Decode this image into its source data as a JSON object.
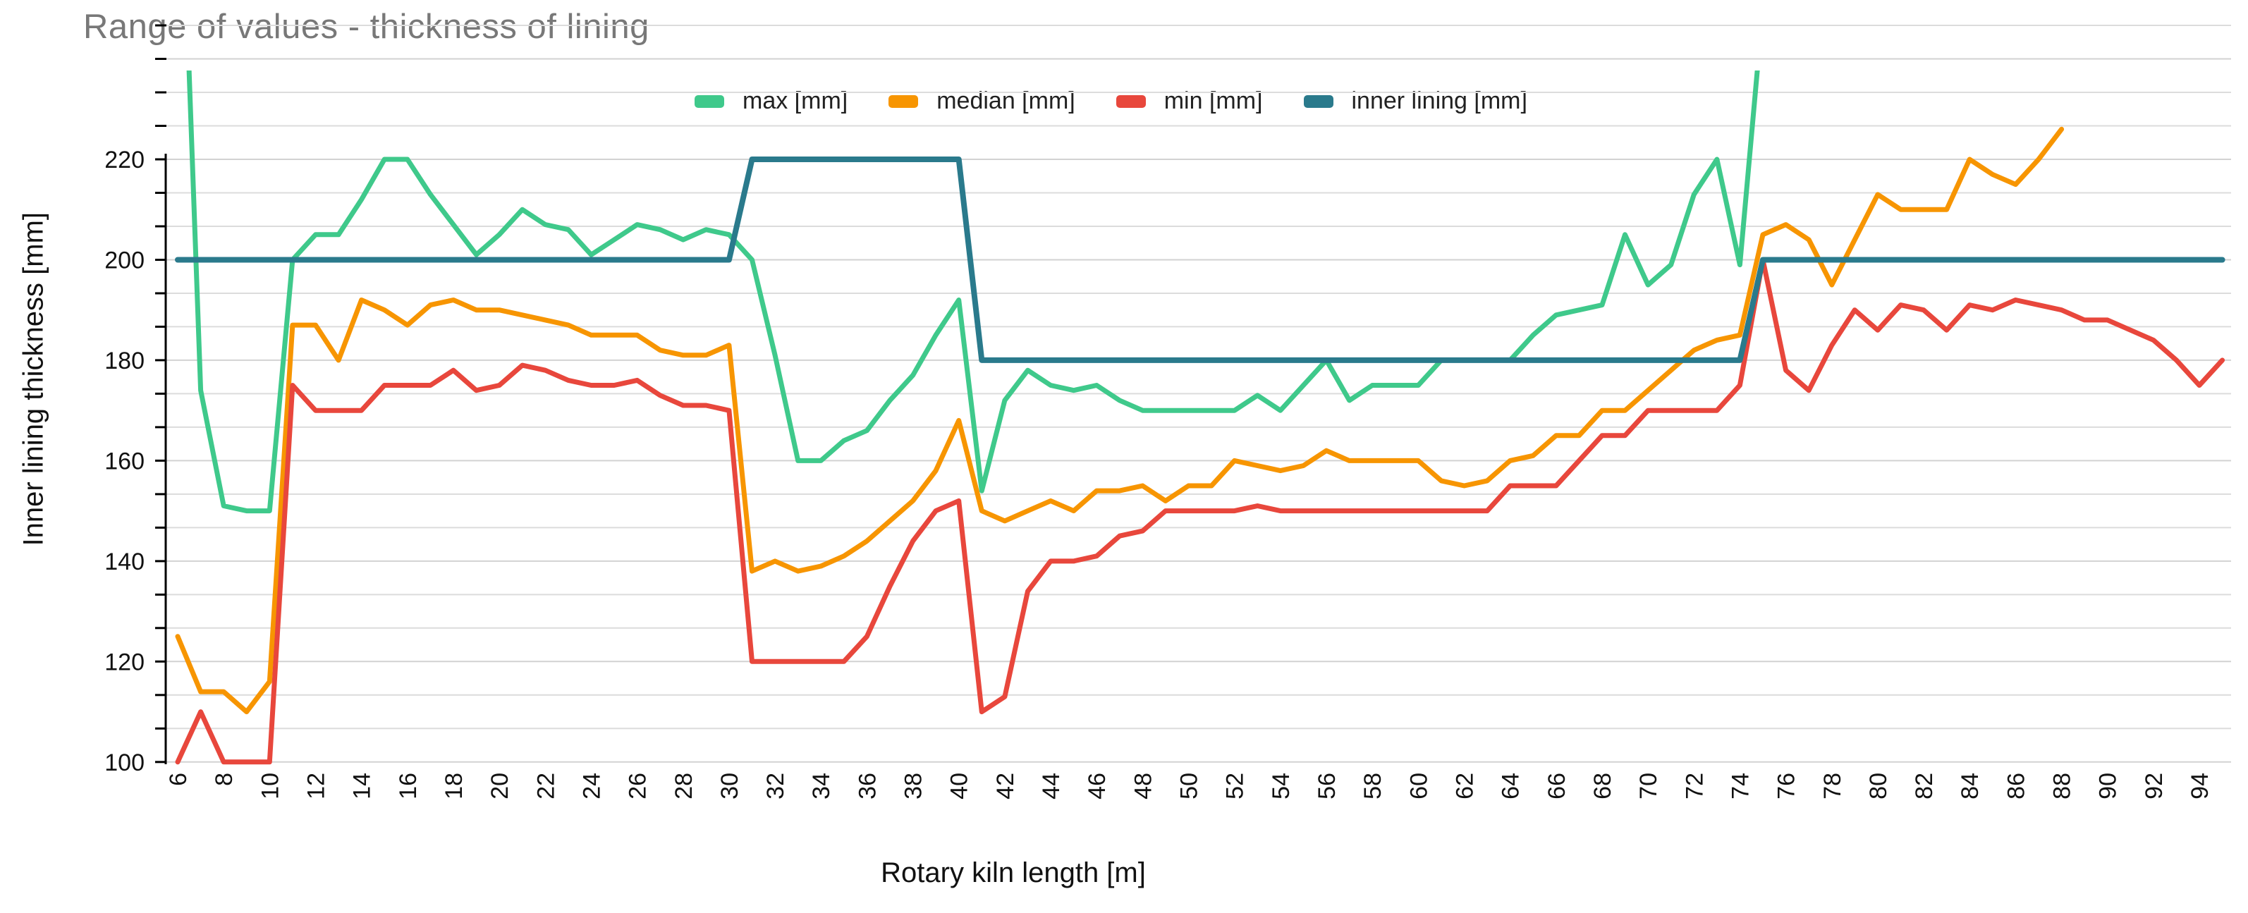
{
  "chart_title": "Range of values - thickness of lining",
  "axes": {
    "x_title": "Rotary kiln length [m]",
    "y_title": "Inner lining thickness [mm]"
  },
  "chart_data": {
    "type": "line",
    "title": "Range of values - thickness of lining",
    "xlabel": "Rotary kiln length [m]",
    "ylabel": "Inner lining thickness [mm]",
    "ylim": [
      100,
      220
    ],
    "xlim": [
      6,
      95
    ],
    "y_ticks": [
      100,
      120,
      140,
      160,
      180,
      200,
      220
    ],
    "y_minor_gridline_step": 6.667,
    "x_ticks": [
      6,
      8,
      10,
      12,
      14,
      16,
      18,
      20,
      22,
      24,
      26,
      28,
      30,
      32,
      34,
      36,
      38,
      40,
      42,
      44,
      46,
      48,
      50,
      52,
      54,
      56,
      58,
      60,
      62,
      64,
      66,
      68,
      70,
      72,
      74,
      76,
      78,
      80,
      82,
      84,
      86,
      88,
      90,
      92,
      94
    ],
    "grid": true,
    "legend_position": "top",
    "note_clipping": "series values above 220 run off the top of the plot",
    "x": [
      6,
      7,
      8,
      9,
      10,
      11,
      12,
      13,
      14,
      15,
      16,
      17,
      18,
      19,
      20,
      21,
      22,
      23,
      24,
      25,
      26,
      27,
      28,
      29,
      30,
      31,
      32,
      33,
      34,
      35,
      36,
      37,
      38,
      39,
      40,
      41,
      42,
      43,
      44,
      45,
      46,
      47,
      48,
      49,
      50,
      51,
      52,
      53,
      54,
      55,
      56,
      57,
      58,
      59,
      60,
      61,
      62,
      63,
      64,
      65,
      66,
      67,
      68,
      69,
      70,
      71,
      72,
      73,
      74,
      75,
      76,
      77,
      78,
      79,
      80,
      81,
      82,
      83,
      84,
      85,
      86,
      87,
      88,
      89,
      90,
      91,
      92,
      93,
      94,
      95
    ],
    "series": [
      {
        "name": "max [mm]",
        "color": "#3fc98b",
        "values": [
          300,
          174,
          151,
          150,
          150,
          200,
          205,
          205,
          212,
          220,
          220,
          213,
          207,
          201,
          205,
          210,
          207,
          206,
          201,
          204,
          207,
          206,
          204,
          206,
          205,
          200,
          181,
          160,
          160,
          164,
          166,
          172,
          177,
          185,
          192,
          154,
          172,
          178,
          175,
          174,
          175,
          172,
          170,
          170,
          170,
          170,
          170,
          173,
          170,
          175,
          180,
          172,
          175,
          175,
          175,
          180,
          180,
          180,
          180,
          185,
          189,
          190,
          191,
          205,
          195,
          199,
          213,
          220,
          199,
          250,
          null,
          null,
          null,
          null,
          null,
          null,
          null,
          null,
          null,
          null,
          null,
          null,
          null,
          null,
          null,
          null,
          null,
          null,
          null,
          null
        ]
      },
      {
        "name": "median [mm]",
        "color": "#f79501",
        "values": [
          125,
          114,
          114,
          110,
          116,
          187,
          187,
          180,
          192,
          190,
          187,
          191,
          192,
          190,
          190,
          189,
          188,
          187,
          185,
          185,
          185,
          182,
          181,
          181,
          183,
          138,
          140,
          138,
          139,
          141,
          144,
          148,
          152,
          158,
          168,
          150,
          148,
          150,
          152,
          150,
          154,
          154,
          155,
          152,
          155,
          155,
          160,
          159,
          158,
          159,
          162,
          160,
          160,
          160,
          160,
          156,
          155,
          156,
          160,
          161,
          165,
          165,
          170,
          170,
          174,
          178,
          182,
          184,
          185,
          205,
          207,
          204,
          195,
          204,
          213,
          210,
          210,
          210,
          220,
          217,
          215,
          220,
          226,
          null,
          null,
          null,
          null,
          null,
          null,
          null
        ]
      },
      {
        "name": "min [mm]",
        "color": "#e8473c",
        "values": [
          100,
          110,
          100,
          100,
          100,
          175,
          170,
          170,
          170,
          175,
          175,
          175,
          178,
          174,
          175,
          179,
          178,
          176,
          175,
          175,
          176,
          173,
          171,
          171,
          170,
          120,
          120,
          120,
          120,
          120,
          125,
          135,
          144,
          150,
          152,
          110,
          113,
          134,
          140,
          140,
          141,
          145,
          146,
          150,
          150,
          150,
          150,
          151,
          150,
          150,
          150,
          150,
          150,
          150,
          150,
          150,
          150,
          150,
          155,
          155,
          155,
          160,
          165,
          165,
          170,
          170,
          170,
          170,
          175,
          200,
          178,
          174,
          183,
          190,
          186,
          191,
          190,
          186,
          191,
          190,
          192,
          191,
          190,
          188,
          188,
          186,
          184,
          180,
          175,
          180
        ]
      },
      {
        "name": "inner lining [mm]",
        "color": "#2a7a8c",
        "values": [
          200,
          200,
          200,
          200,
          200,
          200,
          200,
          200,
          200,
          200,
          200,
          200,
          200,
          200,
          200,
          200,
          200,
          200,
          200,
          200,
          200,
          200,
          200,
          200,
          200,
          220,
          220,
          220,
          220,
          220,
          220,
          220,
          220,
          220,
          220,
          180,
          180,
          180,
          180,
          180,
          180,
          180,
          180,
          180,
          180,
          180,
          180,
          180,
          180,
          180,
          180,
          180,
          180,
          180,
          180,
          180,
          180,
          180,
          180,
          180,
          180,
          180,
          180,
          180,
          180,
          180,
          180,
          180,
          180,
          200,
          200,
          200,
          200,
          200,
          200,
          200,
          200,
          200,
          200,
          200,
          200,
          200,
          200,
          200,
          200,
          200,
          200,
          200,
          200,
          200
        ]
      }
    ]
  }
}
